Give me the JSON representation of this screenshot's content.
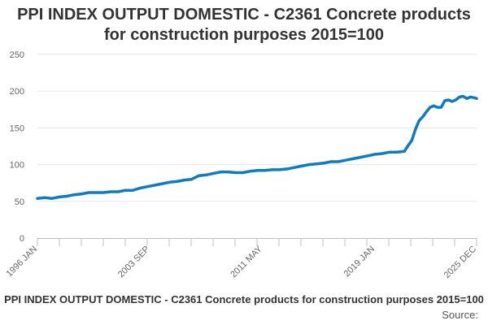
{
  "chart_data": {
    "type": "line",
    "title_line1": "PPI INDEX OUTPUT DOMESTIC - C2361 Concrete products",
    "title_line2": "for construction purposes 2015=100",
    "footer_title": "PPI INDEX OUTPUT DOMESTIC - C2361 Concrete products for construction purposes 2015=100",
    "source_label": "Source:",
    "xlabel": "",
    "ylabel": "",
    "ylim": [
      0,
      250
    ],
    "y_ticks": [
      0,
      50,
      100,
      150,
      200,
      250
    ],
    "x_tick_labels": [
      "1996 JAN",
      "2003 SEP",
      "2011 MAY",
      "2019 JAN",
      "2025 DEC"
    ],
    "x_tick_values": [
      1996.0,
      2003.667,
      2011.333,
      2019.0,
      2025.917
    ],
    "xlim": [
      1996.0,
      2025.917
    ],
    "grid": true,
    "series_color": "#0f7bc1",
    "series": [
      {
        "x": [
          1996.0,
          1996.5,
          1997.0,
          1997.5,
          1998.0,
          1998.5,
          1999.0,
          1999.5,
          2000.0,
          2000.5,
          2001.0,
          2001.5,
          2002.0,
          2002.5,
          2003.0,
          2003.5,
          2004.0,
          2004.5,
          2005.0,
          2005.5,
          2006.0,
          2006.5,
          2007.0,
          2007.5,
          2008.0,
          2008.5,
          2009.0,
          2009.5,
          2010.0,
          2010.5,
          2011.0,
          2011.5,
          2012.0,
          2012.5,
          2013.0,
          2013.5,
          2014.0,
          2014.5,
          2015.0,
          2015.5,
          2016.0,
          2016.5,
          2017.0,
          2017.5,
          2018.0,
          2018.5,
          2019.0,
          2019.5,
          2020.0,
          2020.5,
          2021.0,
          2021.25,
          2021.5,
          2021.75,
          2022.0,
          2022.25,
          2022.5,
          2022.75,
          2023.0,
          2023.25,
          2023.5,
          2023.75,
          2024.0,
          2024.25,
          2024.5,
          2024.75,
          2025.0,
          2025.25,
          2025.5,
          2025.75,
          2025.917
        ],
        "values": [
          54,
          55,
          54,
          56,
          57,
          59,
          60,
          62,
          62,
          62,
          63,
          63,
          65,
          65,
          68,
          70,
          72,
          74,
          76,
          77,
          79,
          80,
          85,
          86,
          88,
          90,
          90,
          89,
          89,
          91,
          92,
          92,
          93,
          93,
          94,
          96,
          98,
          100,
          101,
          102,
          104,
          104,
          106,
          108,
          110,
          112,
          114,
          115,
          117,
          117,
          118,
          126,
          133,
          148,
          160,
          165,
          172,
          178,
          180,
          178,
          178,
          187,
          188,
          186,
          188,
          192,
          193,
          190,
          192,
          191,
          190
        ]
      }
    ]
  }
}
